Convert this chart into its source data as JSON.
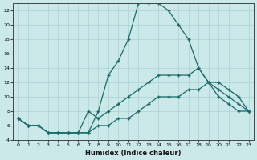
{
  "title": "",
  "xlabel": "Humidex (Indice chaleur)",
  "bg_color": "#cce9ea",
  "grid_color": "#b0d4d6",
  "line_color": "#1a6b6b",
  "xlim": [
    -0.5,
    23.5
  ],
  "ylim": [
    4,
    23
  ],
  "yticks": [
    4,
    6,
    8,
    10,
    12,
    14,
    16,
    18,
    20,
    22
  ],
  "xticks": [
    0,
    1,
    2,
    3,
    4,
    5,
    6,
    7,
    8,
    9,
    10,
    11,
    12,
    13,
    14,
    15,
    16,
    17,
    18,
    19,
    20,
    21,
    22,
    23
  ],
  "series1_x": [
    0,
    1,
    2,
    3,
    4,
    5,
    6,
    7,
    8,
    9,
    10,
    11,
    12,
    13,
    14,
    15,
    16,
    17,
    18,
    19,
    20,
    21,
    22,
    23
  ],
  "series1_y": [
    7,
    6,
    6,
    5,
    5,
    5,
    5,
    5,
    8,
    13,
    15,
    18,
    23,
    23,
    23,
    22,
    20,
    18,
    14,
    12,
    10,
    9,
    8,
    8
  ],
  "series2_x": [
    0,
    1,
    2,
    3,
    4,
    5,
    6,
    7,
    8,
    9,
    10,
    11,
    12,
    13,
    14,
    15,
    16,
    17,
    18,
    19,
    20,
    21,
    22,
    23
  ],
  "series2_y": [
    7,
    6,
    6,
    5,
    5,
    5,
    5,
    8,
    7,
    8,
    9,
    10,
    11,
    12,
    13,
    13,
    13,
    13,
    14,
    12,
    11,
    10,
    9,
    8
  ],
  "series3_x": [
    0,
    1,
    2,
    3,
    4,
    5,
    6,
    7,
    8,
    9,
    10,
    11,
    12,
    13,
    14,
    15,
    16,
    17,
    18,
    19,
    20,
    21,
    22,
    23
  ],
  "series3_y": [
    7,
    6,
    6,
    5,
    5,
    5,
    5,
    5,
    6,
    6,
    7,
    7,
    8,
    9,
    10,
    10,
    10,
    11,
    11,
    12,
    12,
    11,
    10,
    8
  ]
}
